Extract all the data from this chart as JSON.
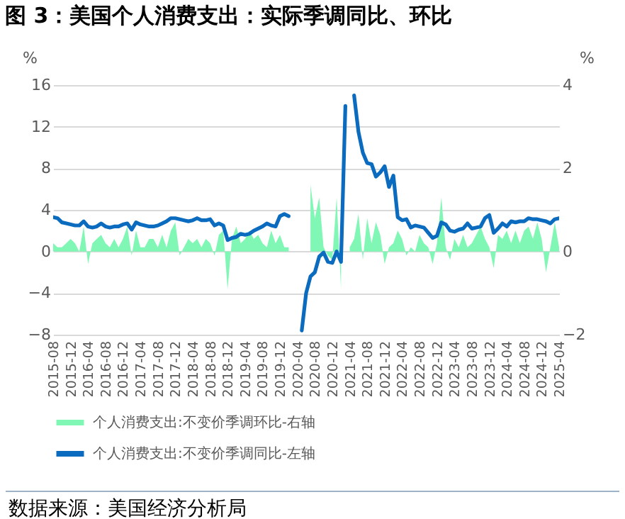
{
  "chart_data": {
    "type": "line",
    "title": "图 3：美国个人消费支出：实际季调同比、环比",
    "ylabel": "%",
    "y2label": "%",
    "categories": [
      "2015-08",
      null,
      null,
      null,
      "2015-12",
      null,
      null,
      null,
      "2016-04",
      null,
      null,
      null,
      "2016-08",
      null,
      null,
      null,
      "2016-12",
      null,
      null,
      null,
      "2017-04",
      null,
      null,
      null,
      "2017-08",
      null,
      null,
      null,
      "2017-12",
      null,
      null,
      null,
      "2018-04",
      null,
      null,
      null,
      "2018-08",
      null,
      null,
      null,
      "2018-12",
      null,
      null,
      null,
      "2019-04",
      null,
      null,
      null,
      "2019-08",
      null,
      null,
      null,
      "2019-12",
      null,
      null,
      null,
      "2020-04",
      null,
      null,
      null,
      "2020-08",
      null,
      null,
      null,
      "2020-12",
      null,
      null,
      null,
      "2021-04",
      null,
      null,
      null,
      "2021-08",
      null,
      null,
      null,
      "2021-12",
      null,
      null,
      null,
      "2022-04",
      null,
      null,
      null,
      "2022-08",
      null,
      null,
      null,
      "2022-12",
      null,
      null,
      null,
      "2023-04",
      null,
      null,
      null,
      "2023-08",
      null,
      null,
      null,
      "2023-12",
      null,
      null,
      null,
      "2024-04",
      null,
      null,
      null,
      "2024-08",
      null,
      null,
      null,
      "2024-12",
      null,
      null,
      null,
      "2025-04"
    ],
    "series": [
      {
        "name": "个人消费支出:不变价季调环比-右轴",
        "type": "area",
        "axis": "y2",
        "color": "#80f7b4",
        "values": [
          0.2,
          0.1,
          0.1,
          0.2,
          0.3,
          0.2,
          0.0,
          0.6,
          -0.3,
          0.2,
          0.3,
          0.4,
          0.2,
          0.1,
          0.3,
          0.1,
          0.3,
          0.6,
          -0.1,
          0.5,
          0.1,
          0.1,
          0.3,
          0.3,
          0.1,
          0.4,
          0.1,
          0.5,
          0.7,
          -0.1,
          0.1,
          0.3,
          0.2,
          0.3,
          0.1,
          0.3,
          0.2,
          -0.1,
          0.4,
          0.5,
          -0.9,
          0.3,
          0.6,
          0.2,
          0.3,
          0.5,
          0.3,
          0.4,
          0.2,
          0.1,
          0.5,
          0.2,
          0.4,
          0.1,
          0.1,
          null,
          null,
          null,
          null,
          1.6,
          0.8,
          1.3,
          0.1,
          -0.1,
          -0.2,
          1.3,
          -0.9,
          null,
          0.1,
          0.3,
          0.9,
          -0.2,
          0.8,
          0.2,
          0.7,
          0.4,
          -0.3,
          0.1,
          0.2,
          0.5,
          0.3,
          -0.1,
          0.1,
          0.0,
          0.4,
          0.2,
          0.1,
          -0.3,
          0.2,
          1.3,
          0.1,
          -0.2,
          0.3,
          0.1,
          0.4,
          0.1,
          0.2,
          0.4,
          0.6,
          0.3,
          0.1,
          -0.4,
          0.4,
          0.3,
          0.5,
          0.2,
          0.5,
          0.2,
          0.5,
          0.6,
          0.3,
          0.7,
          0.3,
          -0.5,
          0.1,
          0.7,
          0.1
        ]
      },
      {
        "name": "个人消费支出:不变价季调同比-左轴",
        "color": "#0b6bbf",
        "values": [
          3.3,
          3.2,
          2.8,
          2.7,
          2.6,
          2.5,
          2.5,
          2.9,
          2.4,
          2.3,
          2.4,
          2.7,
          2.4,
          2.3,
          2.4,
          2.4,
          2.6,
          2.7,
          2.1,
          2.8,
          2.6,
          2.5,
          2.4,
          2.4,
          2.5,
          2.7,
          2.9,
          3.2,
          3.2,
          3.1,
          3.0,
          2.9,
          3.0,
          3.2,
          3.0,
          3.0,
          3.1,
          2.5,
          2.7,
          2.5,
          1.1,
          1.3,
          1.4,
          1.7,
          1.6,
          1.7,
          2.0,
          2.2,
          2.4,
          2.7,
          2.5,
          2.4,
          3.4,
          3.6,
          3.4,
          null,
          null,
          -7.6,
          -4.0,
          -2.4,
          -2.0,
          -0.5,
          -0.1,
          -1.0,
          -1.1,
          0.0,
          -1.0,
          14,
          null,
          15,
          11.5,
          9.5,
          8.5,
          8.4,
          7.2,
          7.6,
          8.2,
          6.2,
          7.3,
          3.3,
          3.0,
          3.1,
          2.3,
          2.5,
          2.4,
          2.3,
          1.8,
          1.3,
          1.5,
          2.8,
          2.6,
          2.0,
          1.9,
          2.1,
          2.2,
          2.7,
          2.2,
          2.3,
          2.4,
          3.2,
          3.5,
          1.8,
          2.2,
          2.7,
          2.4,
          2.9,
          2.8,
          2.9,
          2.9,
          3.2,
          3.1,
          3.1,
          3.0,
          2.9,
          2.7,
          3.1,
          3.2
        ]
      }
    ],
    "ylim": [
      -8,
      16
    ],
    "yticks": [
      -8,
      -4,
      0,
      4,
      8,
      12,
      16
    ],
    "y2lim": [
      -2,
      4
    ],
    "y2ticks": [
      -2,
      0,
      2,
      4
    ],
    "grid": "y",
    "legend": "bottom",
    "annotations": [
      "数据来源：美国经济分析局"
    ]
  }
}
